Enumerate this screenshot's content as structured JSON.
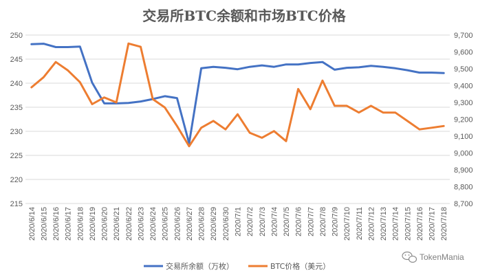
{
  "chart_data": {
    "type": "line",
    "title": "交易所BTC余额和市场BTC价格",
    "categories": [
      "2020/6/14",
      "2020/6/15",
      "2020/6/16",
      "2020/6/17",
      "2020/6/18",
      "2020/6/19",
      "2020/6/20",
      "2020/6/21",
      "2020/6/22",
      "2020/6/23",
      "2020/6/24",
      "2020/6/25",
      "2020/6/26",
      "2020/6/27",
      "2020/6/28",
      "2020/6/29",
      "2020/6/30",
      "2020/7/1",
      "2020/7/2",
      "2020/7/3",
      "2020/7/4",
      "2020/7/5",
      "2020/7/6",
      "2020/7/7",
      "2020/7/8",
      "2020/7/9",
      "2020/7/10",
      "2020/7/11",
      "2020/7/12",
      "2020/7/13",
      "2020/7/14",
      "2020/7/15",
      "2020/7/16",
      "2020/7/17",
      "2020/7/18"
    ],
    "y_left": {
      "min": 215,
      "max": 250,
      "step": 5,
      "ticks": [
        "215",
        "220",
        "225",
        "230",
        "235",
        "240",
        "245",
        "250"
      ]
    },
    "y_right": {
      "min": 8700,
      "max": 9700,
      "step": 100,
      "ticks": [
        "8,700",
        "8,800",
        "8,900",
        "9,000",
        "9,100",
        "9,200",
        "9,300",
        "9,400",
        "9,500",
        "9,600",
        "9,700"
      ]
    },
    "grid": true,
    "legend_position": "bottom",
    "series": [
      {
        "name": "交易所余额（万枚）",
        "axis": "left",
        "color": "#4472C4",
        "values": [
          248.1,
          248.2,
          247.5,
          247.5,
          247.6,
          240.1,
          235.8,
          235.8,
          235.9,
          236.2,
          236.7,
          237.3,
          236.9,
          227.5,
          243.1,
          243.4,
          243.2,
          242.9,
          243.4,
          243.7,
          243.4,
          243.9,
          243.9,
          244.2,
          244.4,
          242.8,
          243.2,
          243.3,
          243.6,
          243.4,
          243.1,
          242.7,
          242.2,
          242.2,
          242.1
        ]
      },
      {
        "name": "BTC价格（美元）",
        "axis": "right",
        "color": "#ED7D31",
        "values": [
          9390,
          9450,
          9540,
          9490,
          9420,
          9290,
          9330,
          9300,
          9650,
          9630,
          9320,
          9270,
          9160,
          9040,
          9150,
          9190,
          9140,
          9230,
          9120,
          9090,
          9130,
          9070,
          9380,
          9260,
          9430,
          9280,
          9280,
          9240,
          9280,
          9240,
          9240,
          9190,
          9140,
          9150,
          9160
        ]
      }
    ]
  },
  "watermark": {
    "text": "TokenMania",
    "icon": "wechat-icon"
  }
}
